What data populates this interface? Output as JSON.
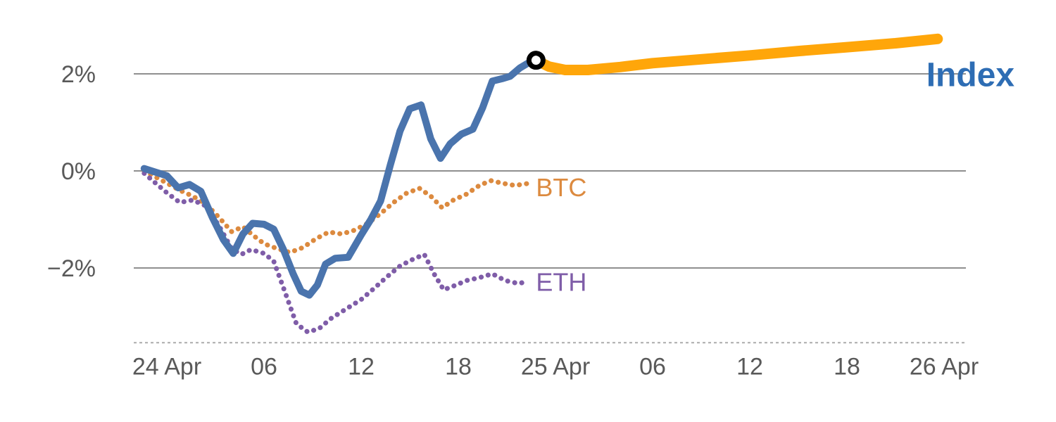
{
  "chart_data": {
    "type": "line",
    "title": "",
    "x_axis": {
      "range_hours": [
        -2.2,
        49.8
      ],
      "baseline_style": "dashed",
      "ticks": [
        {
          "h": 0,
          "label": "24 Apr"
        },
        {
          "h": 6,
          "label": "06"
        },
        {
          "h": 12,
          "label": "12"
        },
        {
          "h": 18,
          "label": "18"
        },
        {
          "h": 24,
          "label": "25 Apr"
        },
        {
          "h": 30,
          "label": "06"
        },
        {
          "h": 36,
          "label": "12"
        },
        {
          "h": 42,
          "label": "18"
        },
        {
          "h": 48,
          "label": "26 Apr"
        }
      ]
    },
    "y_axis": {
      "unit": "%",
      "range": [
        -3.54,
        3.1
      ],
      "grid": true,
      "ticks": [
        {
          "value": 2,
          "label": "2%"
        },
        {
          "value": 0,
          "label": "0%"
        },
        {
          "value": -2,
          "label": "−2%"
        }
      ]
    },
    "style": {
      "grid_color": "#8f8f8f",
      "tick_color": "#595959",
      "baseline_color": "#ababab",
      "background": "#ffffff"
    },
    "series": [
      {
        "name": "BTC",
        "color": "#dc8a3f",
        "dash": "dotted",
        "width": 7,
        "label": {
          "text": "BTC",
          "h": 22.8,
          "value": -0.52,
          "size": 36,
          "bold": false
        },
        "points": [
          [
            -1.4,
            0.0
          ],
          [
            0,
            -0.25
          ],
          [
            0.8,
            -0.4
          ],
          [
            1.6,
            -0.52
          ],
          [
            2.4,
            -0.68
          ],
          [
            3.2,
            -0.95
          ],
          [
            4.0,
            -1.25
          ],
          [
            4.7,
            -1.15
          ],
          [
            5.3,
            -1.32
          ],
          [
            6.0,
            -1.5
          ],
          [
            6.8,
            -1.6
          ],
          [
            7.6,
            -1.68
          ],
          [
            8.4,
            -1.58
          ],
          [
            9.2,
            -1.4
          ],
          [
            10.0,
            -1.26
          ],
          [
            10.8,
            -1.3
          ],
          [
            11.6,
            -1.22
          ],
          [
            12.4,
            -1.08
          ],
          [
            13.2,
            -0.88
          ],
          [
            14.0,
            -0.65
          ],
          [
            14.8,
            -0.46
          ],
          [
            15.6,
            -0.36
          ],
          [
            16.3,
            -0.52
          ],
          [
            17.0,
            -0.76
          ],
          [
            17.7,
            -0.6
          ],
          [
            18.5,
            -0.48
          ],
          [
            19.3,
            -0.3
          ],
          [
            20.0,
            -0.2
          ],
          [
            20.8,
            -0.26
          ],
          [
            21.5,
            -0.3
          ],
          [
            22.3,
            -0.26
          ]
        ]
      },
      {
        "name": "ETH",
        "color": "#7f5da8",
        "dash": "dotted",
        "width": 7,
        "label": {
          "text": "ETH",
          "h": 22.8,
          "value": -2.47,
          "size": 36,
          "bold": false
        },
        "points": [
          [
            -1.4,
            -0.05
          ],
          [
            0,
            -0.45
          ],
          [
            0.8,
            -0.65
          ],
          [
            1.6,
            -0.6
          ],
          [
            2.4,
            -0.72
          ],
          [
            3.2,
            -1.12
          ],
          [
            4.0,
            -1.6
          ],
          [
            4.6,
            -1.72
          ],
          [
            5.2,
            -1.62
          ],
          [
            6.0,
            -1.7
          ],
          [
            6.6,
            -1.86
          ],
          [
            7.3,
            -2.5
          ],
          [
            8.0,
            -3.15
          ],
          [
            8.7,
            -3.32
          ],
          [
            9.4,
            -3.25
          ],
          [
            10.1,
            -3.05
          ],
          [
            11.0,
            -2.86
          ],
          [
            12.0,
            -2.65
          ],
          [
            12.8,
            -2.42
          ],
          [
            13.6,
            -2.18
          ],
          [
            14.4,
            -1.96
          ],
          [
            15.2,
            -1.82
          ],
          [
            15.9,
            -1.72
          ],
          [
            16.5,
            -2.12
          ],
          [
            17.1,
            -2.45
          ],
          [
            17.8,
            -2.36
          ],
          [
            18.5,
            -2.26
          ],
          [
            19.3,
            -2.2
          ],
          [
            20.1,
            -2.12
          ],
          [
            20.9,
            -2.26
          ],
          [
            21.7,
            -2.32
          ],
          [
            22.3,
            -2.28
          ]
        ]
      },
      {
        "name": "Index",
        "color": "#4a74ad",
        "dash": "solid",
        "width": 10,
        "label": {
          "text": "Index",
          "h": 46.9,
          "value": 1.75,
          "size": 48,
          "bold": true,
          "color": "#2e6db4"
        },
        "points": [
          [
            -1.4,
            0.05
          ],
          [
            0,
            -0.1
          ],
          [
            0.7,
            -0.35
          ],
          [
            1.4,
            -0.28
          ],
          [
            2.1,
            -0.42
          ],
          [
            2.8,
            -0.95
          ],
          [
            3.5,
            -1.42
          ],
          [
            4.1,
            -1.7
          ],
          [
            4.7,
            -1.3
          ],
          [
            5.3,
            -1.08
          ],
          [
            6.0,
            -1.1
          ],
          [
            6.6,
            -1.2
          ],
          [
            7.2,
            -1.62
          ],
          [
            7.8,
            -2.12
          ],
          [
            8.3,
            -2.48
          ],
          [
            8.8,
            -2.56
          ],
          [
            9.3,
            -2.35
          ],
          [
            9.8,
            -1.92
          ],
          [
            10.4,
            -1.8
          ],
          [
            11.2,
            -1.78
          ],
          [
            12.0,
            -1.32
          ],
          [
            12.6,
            -1.0
          ],
          [
            13.2,
            -0.62
          ],
          [
            13.8,
            0.12
          ],
          [
            14.4,
            0.82
          ],
          [
            15.0,
            1.28
          ],
          [
            15.7,
            1.36
          ],
          [
            16.3,
            0.66
          ],
          [
            16.9,
            0.26
          ],
          [
            17.5,
            0.56
          ],
          [
            18.2,
            0.76
          ],
          [
            18.9,
            0.86
          ],
          [
            19.5,
            1.3
          ],
          [
            20.1,
            1.85
          ],
          [
            20.7,
            1.9
          ],
          [
            21.2,
            1.95
          ],
          [
            21.8,
            2.12
          ],
          [
            22.3,
            2.22
          ],
          [
            22.8,
            2.28
          ]
        ]
      },
      {
        "name": "Index forecast",
        "color": "#ffa60a",
        "dash": "solid",
        "width": 15,
        "points": [
          [
            22.8,
            2.28
          ],
          [
            23.6,
            2.15
          ],
          [
            24.6,
            2.08
          ],
          [
            26.0,
            2.08
          ],
          [
            28.0,
            2.14
          ],
          [
            30.0,
            2.22
          ],
          [
            33.0,
            2.3
          ],
          [
            36.0,
            2.38
          ],
          [
            39.0,
            2.47
          ],
          [
            42.0,
            2.55
          ],
          [
            45.0,
            2.63
          ],
          [
            47.6,
            2.72
          ]
        ]
      }
    ],
    "marker": {
      "series": "Index",
      "h": 22.8,
      "value": 2.28,
      "shape": "circle",
      "radius": 10,
      "stroke": "#000000",
      "stroke_width": 7,
      "fill": "#ffffff"
    }
  }
}
